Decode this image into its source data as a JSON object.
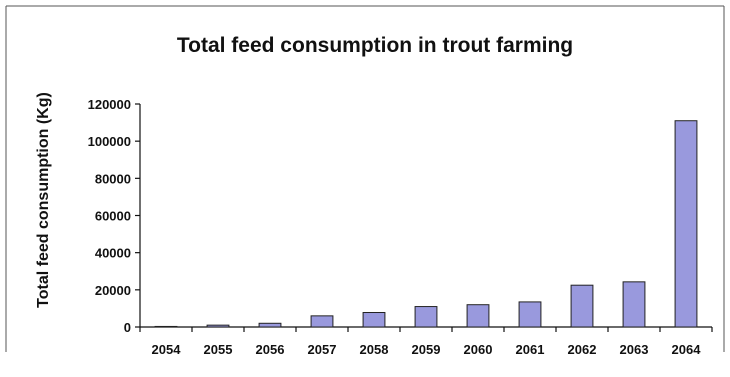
{
  "chart_data": {
    "type": "bar",
    "title": "Total feed consumption in trout farming",
    "xlabel": "",
    "ylabel": "Total feed consumption (Kg)",
    "categories": [
      "2054",
      "2055",
      "2056",
      "2057",
      "2058",
      "2059",
      "2060",
      "2061",
      "2062",
      "2063",
      "2064"
    ],
    "values": [
      300,
      1000,
      2000,
      6000,
      7800,
      11000,
      12000,
      13500,
      22500,
      24300,
      111000
    ],
    "ylim": [
      0,
      120000
    ],
    "yticks": [
      "0",
      "20000",
      "40000",
      "60000",
      "80000",
      "100000",
      "120000"
    ],
    "grid": false,
    "legend": "none",
    "colors": {
      "bar": "#9999dd",
      "bar_edge": "#222222"
    }
  }
}
